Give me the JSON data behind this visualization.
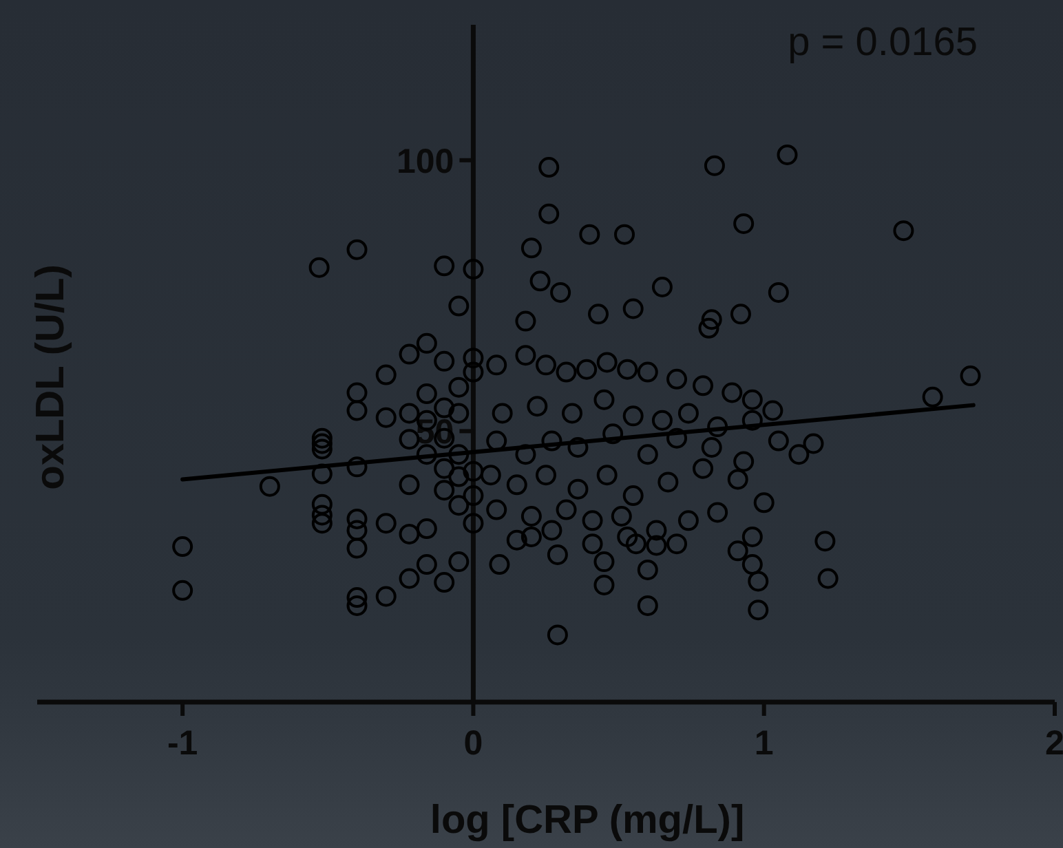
{
  "chart_data": {
    "type": "scatter",
    "xlabel": "log [CRP (mg/L)]",
    "ylabel": "oxLDL (U/L)",
    "annotations": [
      "p = 0.0165"
    ],
    "xlim": [
      -1.5,
      2
    ],
    "ylim": [
      0,
      125
    ],
    "xticks": [
      -1,
      0,
      1,
      2
    ],
    "yticks": [
      50,
      100
    ],
    "grid": false,
    "series": [
      {
        "color": "#000000",
        "marker": "circle",
        "x": [
          -1,
          -1,
          -0.7,
          -0.53,
          -0.52,
          -0.52,
          -0.52,
          -0.52,
          -0.52,
          -0.52,
          -0.52,
          -0.4,
          -0.4,
          -0.4,
          -0.4,
          -0.4,
          -0.4,
          -0.4,
          -0.4,
          -0.4,
          -0.3,
          -0.3,
          -0.3,
          -0.3,
          -0.22,
          -0.22,
          -0.22,
          -0.22,
          -0.22,
          -0.22,
          -0.16,
          -0.16,
          -0.16,
          -0.16,
          -0.16,
          -0.16,
          -0.1,
          -0.1,
          -0.1,
          -0.1,
          -0.1,
          -0.1,
          -0.1,
          -0.05,
          -0.05,
          -0.05,
          -0.05,
          -0.05,
          -0.05,
          -0.05,
          0,
          0,
          0,
          0,
          0,
          0,
          0.26,
          0.26,
          0.2,
          0.23,
          0.3,
          0.4,
          0.52,
          0.43,
          0.18,
          0.83,
          0.93,
          1.05,
          1.08,
          1.48,
          1.71,
          1.58,
          1.21,
          1.22,
          0.98,
          0.98,
          0.29,
          0.29,
          0.45,
          0.45,
          0.6,
          0.6,
          0.56,
          0.63,
          0.82,
          0.81,
          0.92,
          0.65,
          0.55,
          0.08,
          0.18,
          0.25,
          0.32,
          0.39,
          0.46,
          0.53,
          0.6,
          0.7,
          0.79,
          0.89,
          0.96,
          1.03,
          0.1,
          0.22,
          0.34,
          0.45,
          0.55,
          0.65,
          0.74,
          0.84,
          0.96,
          1.05,
          1.12,
          1.17,
          0.08,
          0.18,
          0.27,
          0.36,
          0.48,
          0.6,
          0.7,
          0.82,
          0.93,
          0.06,
          0.15,
          0.25,
          0.36,
          0.46,
          0.55,
          0.67,
          0.79,
          0.91,
          1,
          0.08,
          0.2,
          0.32,
          0.41,
          0.51,
          0.63,
          0.74,
          0.84,
          0.96,
          0.15,
          0.27,
          0.41,
          0.53,
          0.7,
          0.96,
          0.91,
          0.09,
          0.2
        ],
        "values": [
          28.7,
          20.6,
          39.8,
          80.2,
          48.7,
          47.7,
          46.7,
          42.1,
          36.5,
          34.5,
          33,
          83.5,
          57.1,
          53.8,
          43.4,
          33.8,
          31.7,
          28.4,
          19.3,
          17.8,
          60.4,
          52.5,
          33,
          19.5,
          64.2,
          53.3,
          48.5,
          40.1,
          31,
          22.8,
          66.2,
          56.9,
          52,
          45.7,
          32,
          25.4,
          80.5,
          62.9,
          54.3,
          48.7,
          43.1,
          39.1,
          22.1,
          73.1,
          58.1,
          53.3,
          45.7,
          41.6,
          36.3,
          25.9,
          79.9,
          63.5,
          60.9,
          42.6,
          38.1,
          33,
          98.7,
          90.1,
          83.8,
          77.7,
          75.6,
          86.3,
          86.3,
          71.6,
          70.3,
          99,
          88.3,
          75.6,
          101,
          87,
          60.2,
          56.3,
          29.7,
          22.8,
          22.3,
          17,
          12.4,
          27.2,
          25.9,
          21.6,
          24.4,
          17.8,
          29.2,
          28.9,
          70.6,
          69,
          71.6,
          76.6,
          72.6,
          62.2,
          64,
          62.2,
          60.9,
          61.4,
          62.7,
          61.4,
          60.9,
          59.6,
          58.4,
          57.1,
          55.8,
          53.8,
          53.3,
          54.6,
          53.3,
          55.8,
          52.8,
          52,
          53.3,
          50.8,
          52,
          48.2,
          45.7,
          47.7,
          48.2,
          45.7,
          48.2,
          47,
          49.5,
          45.7,
          48.7,
          47,
          44.4,
          41.9,
          40.1,
          41.9,
          39.3,
          41.9,
          38.1,
          40.6,
          43.1,
          41.1,
          36.8,
          35.5,
          34.3,
          35.5,
          33.5,
          34.3,
          31.7,
          33.5,
          35,
          30.5,
          29.9,
          31.7,
          29.2,
          30.5,
          29.2,
          25.4,
          27.9,
          25.4,
          30.5
        ]
      },
      {
        "type": "line",
        "color": "#000000",
        "line_style": "solid",
        "x": [
          -1,
          1.72
        ],
        "values": [
          41.1,
          54.8
        ]
      }
    ]
  }
}
